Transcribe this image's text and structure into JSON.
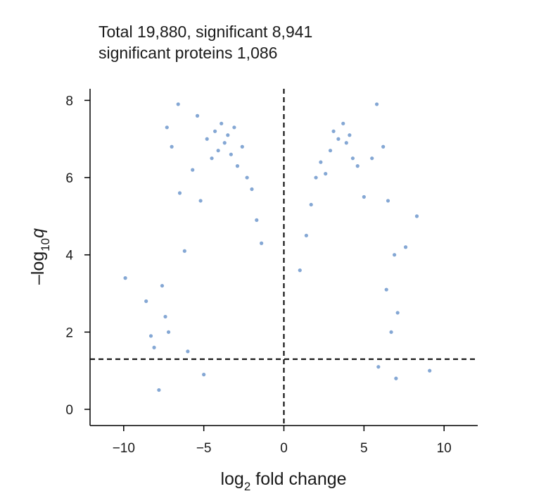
{
  "header": {
    "line1": "Total 19,880, significant 8,941",
    "line2": "significant proteins 1,086"
  },
  "chart_data": {
    "type": "scatter",
    "xlabel_main": "log",
    "xlabel_sub": "2",
    "xlabel_rest": " fold change",
    "ylabel_main": "–log",
    "ylabel_sub": "10",
    "ylabel_var": "q",
    "xlim": [
      -12.1,
      12.1
    ],
    "ylim": [
      -0.42,
      8.3
    ],
    "xticks": [
      -10,
      -5,
      0,
      5,
      10
    ],
    "xtick_labels": [
      "−10",
      "−5",
      "0",
      "5",
      "10"
    ],
    "yticks": [
      0,
      2,
      4,
      6,
      8
    ],
    "ytick_labels": [
      "0",
      "2",
      "4",
      "6",
      "8"
    ],
    "grid": false,
    "point_color": "#1f5fb0",
    "point_opacity": 0.55,
    "threshold_lines": {
      "vertical_x": 0,
      "horizontal_y": 1.3,
      "style": "dashed",
      "color": "#000000"
    },
    "series": [
      {
        "points": [
          [
            -9.9,
            3.4
          ],
          [
            -8.6,
            2.8
          ],
          [
            -8.3,
            1.9
          ],
          [
            -8.1,
            1.6
          ],
          [
            -7.8,
            0.5
          ],
          [
            -7.6,
            3.2
          ],
          [
            -7.4,
            2.4
          ],
          [
            -7.2,
            2.0
          ],
          [
            -7.3,
            7.3
          ],
          [
            -7.0,
            6.8
          ],
          [
            -6.6,
            7.9
          ],
          [
            -6.5,
            5.6
          ],
          [
            -6.2,
            4.1
          ],
          [
            -6.0,
            1.5
          ],
          [
            -5.4,
            7.6
          ],
          [
            -5.7,
            6.2
          ],
          [
            -5.2,
            5.4
          ],
          [
            -5.0,
            0.9
          ],
          [
            -4.8,
            7.0
          ],
          [
            -4.5,
            6.5
          ],
          [
            -4.3,
            7.2
          ],
          [
            -4.1,
            6.7
          ],
          [
            -3.9,
            7.4
          ],
          [
            -3.7,
            6.9
          ],
          [
            -3.5,
            7.1
          ],
          [
            -3.3,
            6.6
          ],
          [
            -3.1,
            7.3
          ],
          [
            -2.9,
            6.3
          ],
          [
            -2.6,
            6.8
          ],
          [
            -2.3,
            6.0
          ],
          [
            -2.0,
            5.7
          ],
          [
            -1.7,
            4.9
          ],
          [
            -1.4,
            4.3
          ],
          [
            1.0,
            3.6
          ],
          [
            1.4,
            4.5
          ],
          [
            1.7,
            5.3
          ],
          [
            2.0,
            6.0
          ],
          [
            2.3,
            6.4
          ],
          [
            2.6,
            6.1
          ],
          [
            2.9,
            6.7
          ],
          [
            3.1,
            7.2
          ],
          [
            3.4,
            7.0
          ],
          [
            3.7,
            7.4
          ],
          [
            3.9,
            6.9
          ],
          [
            4.1,
            7.1
          ],
          [
            4.3,
            6.5
          ],
          [
            4.6,
            6.3
          ],
          [
            5.0,
            5.5
          ],
          [
            5.5,
            6.5
          ],
          [
            5.8,
            7.9
          ],
          [
            6.2,
            6.8
          ],
          [
            6.5,
            5.4
          ],
          [
            6.9,
            4.0
          ],
          [
            7.1,
            2.5
          ],
          [
            7.6,
            4.2
          ],
          [
            8.3,
            5.0
          ],
          [
            9.1,
            1.0
          ],
          [
            6.4,
            3.1
          ],
          [
            7.0,
            0.8
          ],
          [
            5.9,
            1.1
          ],
          [
            6.7,
            2.0
          ]
        ]
      }
    ]
  }
}
